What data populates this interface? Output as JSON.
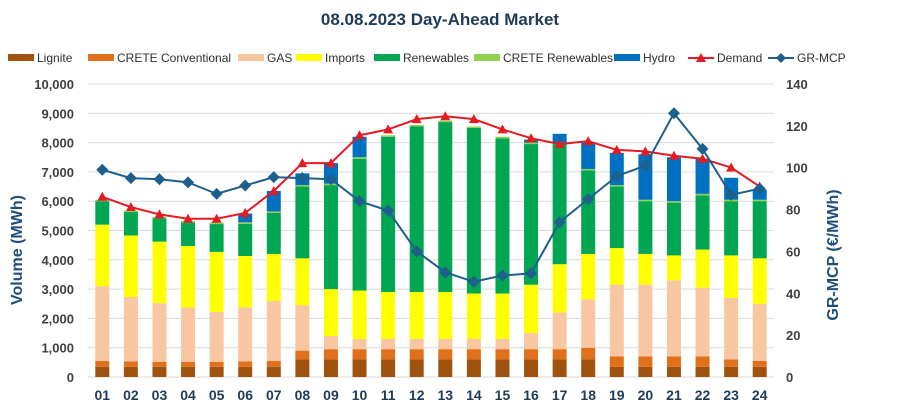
{
  "chart_data": {
    "type": "bar",
    "title": "08.08.2023  Day-Ahead Market",
    "ylabel": "Volume (MWh)",
    "y2label": "GR-MCP (€/MWh)",
    "ylim": [
      0,
      10000
    ],
    "y2lim": [
      0,
      140
    ],
    "y_ticks": [
      "0",
      "1,000",
      "2,000",
      "3,000",
      "4,000",
      "5,000",
      "6,000",
      "7,000",
      "8,000",
      "9,000",
      "10,000"
    ],
    "y2_ticks": [
      "0",
      "20",
      "40",
      "60",
      "80",
      "100",
      "120",
      "140"
    ],
    "categories": [
      "01",
      "02",
      "03",
      "04",
      "05",
      "06",
      "07",
      "08",
      "09",
      "10",
      "11",
      "12",
      "13",
      "14",
      "15",
      "16",
      "17",
      "18",
      "19",
      "20",
      "21",
      "22",
      "23",
      "24"
    ],
    "stacked_series": [
      {
        "name": "Lignite",
        "color": "#a0520f",
        "values": [
          350,
          350,
          350,
          350,
          350,
          350,
          350,
          600,
          600,
          600,
          600,
          600,
          600,
          600,
          600,
          600,
          600,
          600,
          350,
          350,
          350,
          350,
          350,
          350
        ]
      },
      {
        "name": "CRETE Conventional",
        "color": "#e0701a",
        "values": [
          200,
          180,
          170,
          170,
          170,
          180,
          200,
          300,
          350,
          350,
          350,
          350,
          350,
          350,
          350,
          350,
          350,
          400,
          350,
          350,
          350,
          350,
          250,
          200
        ]
      },
      {
        "name": "GAS",
        "color": "#f8c7a2",
        "values": [
          2550,
          2200,
          2000,
          1850,
          1700,
          1850,
          2050,
          1550,
          450,
          350,
          350,
          350,
          350,
          350,
          350,
          550,
          1250,
          1650,
          2450,
          2450,
          2600,
          2350,
          2100,
          1950
        ]
      },
      {
        "name": "Imports",
        "color": "#ffff00",
        "values": [
          2100,
          2100,
          2100,
          2100,
          2050,
          1750,
          1600,
          1600,
          1600,
          1650,
          1600,
          1600,
          1600,
          1550,
          1550,
          1650,
          1650,
          1550,
          1250,
          1050,
          850,
          1300,
          1450,
          1550
        ]
      },
      {
        "name": "Renewables",
        "color": "#00a651",
        "values": [
          800,
          800,
          800,
          800,
          950,
          1100,
          1400,
          2450,
          3550,
          4500,
          5300,
          5650,
          5800,
          5650,
          5300,
          4800,
          4100,
          2850,
          2100,
          1800,
          1800,
          1850,
          1850,
          1950
        ]
      },
      {
        "name": "CRETE Renewables",
        "color": "#92d050",
        "values": [
          50,
          50,
          50,
          50,
          50,
          50,
          50,
          50,
          50,
          50,
          50,
          50,
          50,
          50,
          50,
          50,
          50,
          50,
          50,
          50,
          50,
          50,
          50,
          50
        ]
      },
      {
        "name": "Hydro",
        "color": "#0070c0",
        "values": [
          0,
          0,
          0,
          0,
          0,
          300,
          700,
          400,
          700,
          700,
          0,
          0,
          0,
          0,
          0,
          100,
          300,
          900,
          1100,
          1550,
          1500,
          1200,
          750,
          350
        ]
      }
    ],
    "line_series": [
      {
        "name": "Demand",
        "color": "#e31b23",
        "axis": "left",
        "marker": "triangle",
        "values": [
          6150,
          5800,
          5550,
          5400,
          5400,
          5600,
          6350,
          7300,
          7300,
          8250,
          8450,
          8800,
          8900,
          8800,
          8450,
          8150,
          7950,
          8050,
          7750,
          7700,
          7550,
          7450,
          7150,
          6500
        ]
      },
      {
        "name": "GR-MCP",
        "color": "#1f5f8b",
        "axis": "right",
        "marker": "diamond",
        "values": [
          99,
          95,
          94.5,
          93,
          87.5,
          91.5,
          95.5,
          95,
          94.5,
          84,
          79.5,
          60,
          50,
          45.5,
          48.5,
          49.5,
          74,
          85,
          96,
          101,
          126,
          109,
          87,
          90
        ]
      }
    ],
    "legend": [
      "Lignite",
      "CRETE Conventional",
      "GAS",
      "Imports",
      "Renewables",
      "CRETE Renewables",
      "Hydro",
      "Demand",
      "GR-MCP"
    ],
    "legend_position": "top",
    "grid": true
  }
}
